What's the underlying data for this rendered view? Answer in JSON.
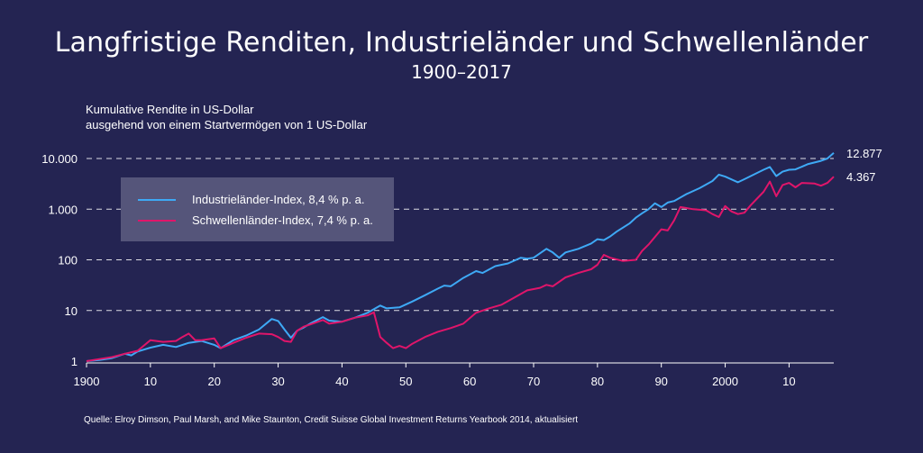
{
  "title": "Langfristige Renditen, Industrieländer und Schwellenländer",
  "subtitle": "1900–2017",
  "source": "Quelle: Elroy Dimson, Paul Marsh, and Mike Staunton, Credit Suisse Global Investment Returns Yearbook 2014, aktualisiert",
  "chart_data": {
    "type": "line",
    "ylabel_lines": [
      "Kumulative Rendite in US-Dollar",
      "ausgehend von einem Startvermögen von 1 US-Dollar"
    ],
    "y_scale": "log",
    "ylim": [
      1,
      20000
    ],
    "xlim": [
      1900,
      2017
    ],
    "y_ticks": [
      {
        "value": 1,
        "label": "1"
      },
      {
        "value": 10,
        "label": "10"
      },
      {
        "value": 100,
        "label": "100"
      },
      {
        "value": 1000,
        "label": "1.000"
      },
      {
        "value": 10000,
        "label": "10.000"
      }
    ],
    "x_ticks": [
      {
        "value": 1900,
        "label": "1900"
      },
      {
        "value": 1910,
        "label": "10"
      },
      {
        "value": 1920,
        "label": "20"
      },
      {
        "value": 1930,
        "label": "30"
      },
      {
        "value": 1940,
        "label": "40"
      },
      {
        "value": 1950,
        "label": "50"
      },
      {
        "value": 1960,
        "label": "60"
      },
      {
        "value": 1970,
        "label": "70"
      },
      {
        "value": 1980,
        "label": "80"
      },
      {
        "value": 1990,
        "label": "90"
      },
      {
        "value": 2000,
        "label": "2000"
      },
      {
        "value": 2010,
        "label": "10"
      }
    ],
    "grid": "horizontal dashed",
    "legend_position": "left",
    "series": [
      {
        "name": "Industrieländer-Index, 8,4 % p. a.",
        "color": "#3ea9f5",
        "end_label": "12.877",
        "points": [
          [
            1900,
            1
          ],
          [
            1902,
            1.05
          ],
          [
            1904,
            1.15
          ],
          [
            1906,
            1.4
          ],
          [
            1907,
            1.3
          ],
          [
            1908,
            1.55
          ],
          [
            1910,
            1.85
          ],
          [
            1912,
            2.1
          ],
          [
            1914,
            1.9
          ],
          [
            1916,
            2.3
          ],
          [
            1918,
            2.5
          ],
          [
            1920,
            2.1
          ],
          [
            1921,
            1.8
          ],
          [
            1923,
            2.6
          ],
          [
            1925,
            3.2
          ],
          [
            1927,
            4.2
          ],
          [
            1929,
            6.8
          ],
          [
            1930,
            6.2
          ],
          [
            1931,
            4.2
          ],
          [
            1932,
            2.9
          ],
          [
            1933,
            4.0
          ],
          [
            1934,
            4.6
          ],
          [
            1935,
            5.5
          ],
          [
            1937,
            7.4
          ],
          [
            1938,
            6.3
          ],
          [
            1940,
            6.0
          ],
          [
            1942,
            7.2
          ],
          [
            1944,
            9.0
          ],
          [
            1946,
            12.5
          ],
          [
            1947,
            11.0
          ],
          [
            1949,
            11.5
          ],
          [
            1951,
            15
          ],
          [
            1953,
            20
          ],
          [
            1955,
            27
          ],
          [
            1956,
            31
          ],
          [
            1957,
            30
          ],
          [
            1959,
            44
          ],
          [
            1961,
            60
          ],
          [
            1962,
            55
          ],
          [
            1964,
            75
          ],
          [
            1966,
            85
          ],
          [
            1968,
            110
          ],
          [
            1969,
            105
          ],
          [
            1970,
            110
          ],
          [
            1972,
            165
          ],
          [
            1973,
            140
          ],
          [
            1974,
            110
          ],
          [
            1975,
            140
          ],
          [
            1977,
            165
          ],
          [
            1979,
            210
          ],
          [
            1980,
            255
          ],
          [
            1981,
            245
          ],
          [
            1982,
            290
          ],
          [
            1983,
            360
          ],
          [
            1985,
            520
          ],
          [
            1986,
            680
          ],
          [
            1987,
            830
          ],
          [
            1988,
            1000
          ],
          [
            1989,
            1300
          ],
          [
            1990,
            1100
          ],
          [
            1991,
            1350
          ],
          [
            1992,
            1450
          ],
          [
            1994,
            2000
          ],
          [
            1996,
            2600
          ],
          [
            1998,
            3600
          ],
          [
            1999,
            4800
          ],
          [
            2000,
            4400
          ],
          [
            2002,
            3400
          ],
          [
            2003,
            3900
          ],
          [
            2004,
            4500
          ],
          [
            2006,
            6000
          ],
          [
            2007,
            6800
          ],
          [
            2008,
            4500
          ],
          [
            2009,
            5500
          ],
          [
            2010,
            6000
          ],
          [
            2011,
            6100
          ],
          [
            2013,
            7800
          ],
          [
            2015,
            9000
          ],
          [
            2016,
            10000
          ],
          [
            2017,
            12877
          ]
        ]
      },
      {
        "name": "Schwellenländer-Index, 7,4 % p. a.",
        "color": "#e0156a",
        "end_label": "4.367",
        "points": [
          [
            1900,
            1
          ],
          [
            1902,
            1.1
          ],
          [
            1904,
            1.2
          ],
          [
            1906,
            1.4
          ],
          [
            1908,
            1.6
          ],
          [
            1910,
            2.6
          ],
          [
            1912,
            2.4
          ],
          [
            1914,
            2.5
          ],
          [
            1915,
            3.0
          ],
          [
            1916,
            3.5
          ],
          [
            1917,
            2.6
          ],
          [
            1918,
            2.6
          ],
          [
            1920,
            2.8
          ],
          [
            1921,
            1.8
          ],
          [
            1923,
            2.3
          ],
          [
            1925,
            2.9
          ],
          [
            1927,
            3.5
          ],
          [
            1929,
            3.4
          ],
          [
            1930,
            3.0
          ],
          [
            1931,
            2.5
          ],
          [
            1932,
            2.4
          ],
          [
            1933,
            4.0
          ],
          [
            1934,
            4.8
          ],
          [
            1935,
            5.3
          ],
          [
            1937,
            6.5
          ],
          [
            1938,
            5.5
          ],
          [
            1940,
            6.0
          ],
          [
            1942,
            7.2
          ],
          [
            1944,
            8.0
          ],
          [
            1945,
            9.2
          ],
          [
            1946,
            3.0
          ],
          [
            1947,
            2.3
          ],
          [
            1948,
            1.8
          ],
          [
            1949,
            2.0
          ],
          [
            1950,
            1.8
          ],
          [
            1951,
            2.2
          ],
          [
            1953,
            3.0
          ],
          [
            1955,
            3.8
          ],
          [
            1957,
            4.5
          ],
          [
            1959,
            5.5
          ],
          [
            1961,
            9.0
          ],
          [
            1963,
            11
          ],
          [
            1965,
            13
          ],
          [
            1967,
            18
          ],
          [
            1969,
            25
          ],
          [
            1971,
            28
          ],
          [
            1972,
            32
          ],
          [
            1973,
            30
          ],
          [
            1975,
            45
          ],
          [
            1977,
            55
          ],
          [
            1979,
            65
          ],
          [
            1980,
            80
          ],
          [
            1981,
            125
          ],
          [
            1982,
            110
          ],
          [
            1984,
            95
          ],
          [
            1986,
            100
          ],
          [
            1987,
            150
          ],
          [
            1988,
            200
          ],
          [
            1990,
            400
          ],
          [
            1991,
            380
          ],
          [
            1992,
            600
          ],
          [
            1993,
            1100
          ],
          [
            1995,
            1000
          ],
          [
            1997,
            950
          ],
          [
            1998,
            800
          ],
          [
            1999,
            700
          ],
          [
            2000,
            1150
          ],
          [
            2001,
            900
          ],
          [
            2002,
            800
          ],
          [
            2003,
            850
          ],
          [
            2004,
            1200
          ],
          [
            2006,
            2200
          ],
          [
            2007,
            3500
          ],
          [
            2008,
            1800
          ],
          [
            2009,
            3000
          ],
          [
            2010,
            3300
          ],
          [
            2011,
            2700
          ],
          [
            2012,
            3300
          ],
          [
            2014,
            3200
          ],
          [
            2015,
            2900
          ],
          [
            2016,
            3300
          ],
          [
            2017,
            4367
          ]
        ]
      }
    ]
  }
}
